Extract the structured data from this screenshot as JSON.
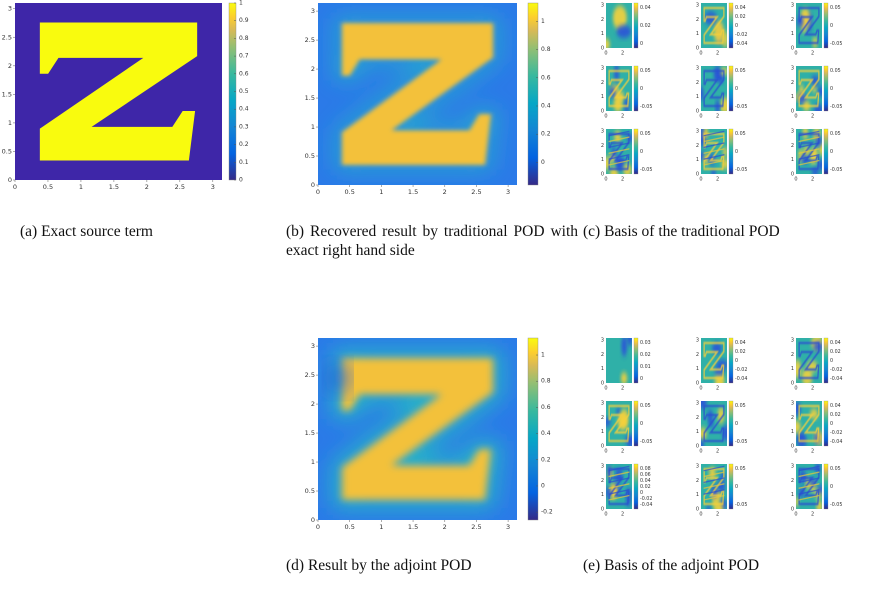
{
  "panels": [
    {
      "caption": "(a) Exact source term",
      "xlim": [
        0,
        3.14
      ],
      "ylim": [
        0,
        3.1
      ],
      "x_ticks": [
        0,
        0.5,
        1,
        1.5,
        2,
        2.5,
        3
      ],
      "y_ticks": [
        0,
        0.5,
        1,
        1.5,
        2,
        2.5,
        3
      ],
      "colorbar_lim": [
        0,
        1
      ],
      "colorbar_ticks": [
        0,
        0.1,
        0.2,
        0.3,
        0.4,
        0.5,
        0.6,
        0.7,
        0.8,
        0.9,
        1
      ]
    },
    {
      "caption": "(b) Recovered result by traditional POD with exact right hand side",
      "xlim": [
        0,
        3.14
      ],
      "ylim": [
        0,
        3.14
      ],
      "x_ticks": [
        0,
        0.5,
        1,
        1.5,
        2,
        2.5,
        3
      ],
      "y_ticks": [
        0,
        0.5,
        1,
        1.5,
        2,
        2.5,
        3
      ],
      "colorbar_lim": [
        -0.16,
        1.13
      ],
      "colorbar_ticks": [
        0,
        0.2,
        0.4,
        0.6,
        0.8,
        1
      ]
    },
    {
      "caption": "(c) Basis of the traditional POD",
      "subplot_xlim": [
        0,
        3.14
      ],
      "subplot_ylim": [
        0,
        3.14
      ],
      "subplots": [
        {
          "x_ticks": [
            0,
            2
          ],
          "y_ticks": [
            0,
            1,
            2,
            3
          ],
          "colorbar_ticks": [
            0.04,
            0.02,
            0
          ]
        },
        {
          "x_ticks": [
            0,
            2
          ],
          "y_ticks": [
            0,
            1,
            2,
            3
          ],
          "colorbar_ticks": [
            0.04,
            0.02,
            0,
            -0.02,
            -0.04
          ]
        },
        {
          "x_ticks": [
            0,
            2
          ],
          "y_ticks": [
            0,
            1,
            2,
            3
          ],
          "colorbar_ticks": [
            0.05,
            0,
            -0.05
          ]
        },
        {
          "x_ticks": [
            0,
            2
          ],
          "y_ticks": [
            0,
            1,
            2,
            3
          ],
          "colorbar_ticks": [
            0.05,
            0,
            -0.05
          ]
        },
        {
          "x_ticks": [
            0,
            2
          ],
          "y_ticks": [
            0,
            1,
            2,
            3
          ],
          "colorbar_ticks": [
            0.05,
            0,
            -0.05
          ]
        },
        {
          "x_ticks": [
            0,
            2
          ],
          "y_ticks": [
            0,
            1,
            2,
            3
          ],
          "colorbar_ticks": [
            0.05,
            0,
            -0.05
          ]
        },
        {
          "x_ticks": [
            0,
            2
          ],
          "y_ticks": [
            0,
            1,
            2,
            3
          ],
          "colorbar_ticks": [
            0.05,
            0,
            -0.05
          ]
        },
        {
          "x_ticks": [
            0,
            2
          ],
          "y_ticks": [
            0,
            1,
            2,
            3
          ],
          "colorbar_ticks": [
            0.05,
            0,
            -0.05
          ]
        },
        {
          "x_ticks": [
            0,
            2
          ],
          "y_ticks": [
            0,
            1,
            2,
            3
          ],
          "colorbar_ticks": [
            0.05,
            0,
            -0.05
          ]
        }
      ]
    },
    {
      "caption": "(d) Result by the adjoint POD",
      "xlim": [
        0,
        3.14
      ],
      "ylim": [
        0,
        3.14
      ],
      "x_ticks": [
        0,
        0.5,
        1,
        1.5,
        2,
        2.5,
        3
      ],
      "y_ticks": [
        0,
        0.5,
        1,
        1.5,
        2,
        2.5,
        3
      ],
      "colorbar_lim": [
        -0.26,
        1.13
      ],
      "colorbar_ticks": [
        -0.2,
        0,
        0.2,
        0.4,
        0.6,
        0.8,
        1
      ]
    },
    {
      "caption": "(e) Basis of the adjoint POD",
      "subplot_xlim": [
        0,
        3.14
      ],
      "subplot_ylim": [
        0,
        3.14
      ],
      "subplots": [
        {
          "x_ticks": [
            0,
            2
          ],
          "y_ticks": [
            0,
            1,
            2,
            3
          ],
          "colorbar_ticks": [
            0.03,
            0.02,
            0.01,
            0
          ]
        },
        {
          "x_ticks": [
            0,
            2
          ],
          "y_ticks": [
            0,
            1,
            2,
            3
          ],
          "colorbar_ticks": [
            0.04,
            0.02,
            0,
            -0.02,
            -0.04
          ]
        },
        {
          "x_ticks": [
            0,
            2
          ],
          "y_ticks": [
            0,
            1,
            2,
            3
          ],
          "colorbar_ticks": [
            0.04,
            0.02,
            0,
            -0.02,
            -0.04
          ]
        },
        {
          "x_ticks": [
            0,
            2
          ],
          "y_ticks": [
            0,
            1,
            2,
            3
          ],
          "colorbar_ticks": [
            0.05,
            0,
            -0.05
          ]
        },
        {
          "x_ticks": [
            0,
            2
          ],
          "y_ticks": [
            0,
            1,
            2,
            3
          ],
          "colorbar_ticks": [
            0.05,
            0,
            -0.05
          ]
        },
        {
          "x_ticks": [
            0,
            2
          ],
          "y_ticks": [
            0,
            1,
            2,
            3
          ],
          "colorbar_ticks": [
            0.04,
            0.02,
            0,
            -0.02,
            -0.04
          ]
        },
        {
          "x_ticks": [
            0,
            2
          ],
          "y_ticks": [
            0,
            1,
            2,
            3
          ],
          "colorbar_ticks": [
            0.08,
            0.06,
            0.04,
            0.02,
            0,
            -0.02,
            -0.04
          ]
        },
        {
          "x_ticks": [
            0,
            2
          ],
          "y_ticks": [
            0,
            1,
            2,
            3
          ],
          "colorbar_ticks": [
            0.05,
            0,
            -0.05
          ]
        },
        {
          "x_ticks": [
            0,
            2
          ],
          "y_ticks": [
            0,
            1,
            2,
            3
          ],
          "colorbar_ticks": [
            0.05,
            0,
            -0.05
          ]
        }
      ]
    }
  ]
}
